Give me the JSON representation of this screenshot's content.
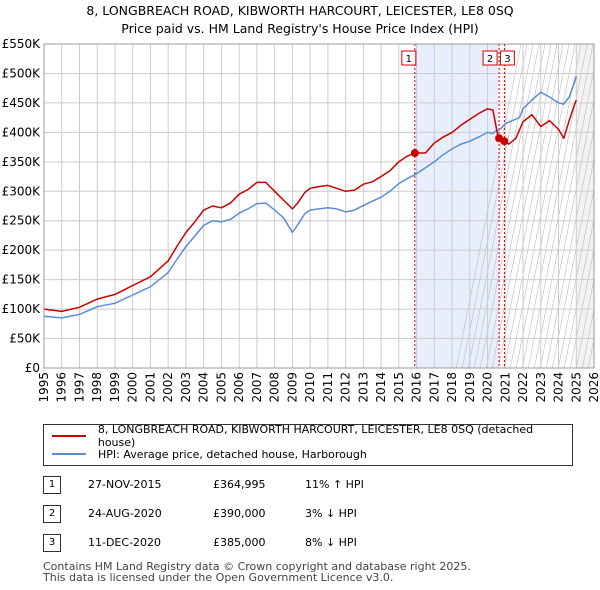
{
  "title": {
    "line1": "8, LONGBREACH ROAD, KIBWORTH HARCOURT, LEICESTER, LE8 0SQ",
    "line2": "Price paid vs. HM Land Registry's House Price Index (HPI)"
  },
  "colors": {
    "property": "#cc0000",
    "hpi": "#5b8dd6",
    "shade": "#e8eefb",
    "grid": "#cccccc",
    "marker_line": "#cc0000",
    "future_hatch": "#bbbbbb"
  },
  "chart_data": {
    "type": "line",
    "xlim": [
      1995,
      2026
    ],
    "ylim": [
      0,
      550000
    ],
    "y_ticks": [
      0,
      50000,
      100000,
      150000,
      200000,
      250000,
      300000,
      350000,
      400000,
      450000,
      500000,
      550000
    ],
    "y_tick_labels": [
      "£0",
      "£50K",
      "£100K",
      "£150K",
      "£200K",
      "£250K",
      "£300K",
      "£350K",
      "£400K",
      "£450K",
      "£500K",
      "£550K"
    ],
    "x_ticks": [
      1995,
      1996,
      1997,
      1998,
      1999,
      2000,
      2001,
      2002,
      2003,
      2004,
      2005,
      2006,
      2007,
      2008,
      2009,
      2010,
      2011,
      2012,
      2013,
      2014,
      2015,
      2016,
      2017,
      2018,
      2019,
      2020,
      2021,
      2022,
      2023,
      2024,
      2025,
      2026
    ],
    "x_tick_labels": [
      "1995",
      "1996",
      "1997",
      "1998",
      "1999",
      "2000",
      "2001",
      "2002",
      "2003",
      "2004",
      "2005",
      "2006",
      "2007",
      "2008",
      "2009",
      "2010",
      "2011",
      "2012",
      "2013",
      "2014",
      "2015",
      "2016",
      "2017",
      "2018",
      "2019",
      "2020",
      "2021",
      "2022",
      "2023",
      "2024",
      "2025",
      "2026"
    ],
    "grid": true,
    "shaded_periods": [
      [
        2015.9,
        2020.62
      ]
    ],
    "future_from": 2025.0,
    "series": [
      {
        "name": "8, LONGBREACH ROAD, KIBWORTH HARCOURT, LEICESTER, LE8 0SQ (detached house)",
        "x": [
          1995.0,
          1996.0,
          1997.0,
          1998.0,
          1999.0,
          2000.0,
          2001.0,
          2002.0,
          2002.5,
          2003.0,
          2003.5,
          2004.0,
          2004.5,
          2005.0,
          2005.5,
          2006.0,
          2006.5,
          2007.0,
          2007.5,
          2008.0,
          2008.5,
          2009.0,
          2009.3,
          2009.7,
          2010.0,
          2010.5,
          2011.0,
          2011.5,
          2012.0,
          2012.5,
          2013.0,
          2013.5,
          2014.0,
          2014.5,
          2015.0,
          2015.5,
          2015.9,
          2016.5,
          2017.0,
          2017.5,
          2018.0,
          2018.5,
          2019.0,
          2019.5,
          2020.0,
          2020.3,
          2020.45,
          2020.6,
          2020.8,
          2020.95,
          2021.2,
          2021.6,
          2022.0,
          2022.5,
          2023.0,
          2023.5,
          2024.0,
          2024.3,
          2024.6,
          2024.9,
          2025.0
        ],
        "y": [
          100000,
          96000,
          103000,
          117000,
          125000,
          140000,
          155000,
          182000,
          207000,
          230000,
          248000,
          268000,
          275000,
          272000,
          280000,
          295000,
          303000,
          315000,
          315000,
          300000,
          285000,
          270000,
          280000,
          298000,
          305000,
          308000,
          310000,
          305000,
          300000,
          302000,
          312000,
          316000,
          325000,
          335000,
          350000,
          360000,
          364995,
          365000,
          382000,
          392000,
          400000,
          412000,
          422000,
          432000,
          440000,
          438000,
          415000,
          390000,
          388000,
          385000,
          380000,
          390000,
          418000,
          430000,
          410000,
          420000,
          405000,
          390000,
          420000,
          447000,
          455000
        ]
      },
      {
        "name": "HPI: Average price, detached house, Harborough",
        "x": [
          1995.0,
          1996.0,
          1997.0,
          1998.0,
          1999.0,
          2000.0,
          2001.0,
          2002.0,
          2002.5,
          2003.0,
          2003.5,
          2004.0,
          2004.5,
          2005.0,
          2005.5,
          2006.0,
          2006.5,
          2007.0,
          2007.5,
          2008.0,
          2008.5,
          2009.0,
          2009.3,
          2009.7,
          2010.0,
          2010.5,
          2011.0,
          2011.5,
          2012.0,
          2012.5,
          2013.0,
          2013.5,
          2014.0,
          2014.5,
          2015.0,
          2015.5,
          2015.9,
          2016.5,
          2017.0,
          2017.5,
          2018.0,
          2018.5,
          2019.0,
          2019.5,
          2020.0,
          2020.3,
          2020.45,
          2020.6,
          2020.8,
          2021.0,
          2021.4,
          2021.8,
          2022.0,
          2022.5,
          2023.0,
          2023.5,
          2024.0,
          2024.3,
          2024.6,
          2024.9,
          2025.0
        ],
        "y": [
          88000,
          85000,
          91000,
          104000,
          110000,
          124000,
          138000,
          162000,
          185000,
          206000,
          224000,
          242000,
          250000,
          248000,
          252000,
          263000,
          270000,
          279000,
          280000,
          268000,
          255000,
          230000,
          243000,
          262000,
          268000,
          270000,
          272000,
          270000,
          265000,
          268000,
          276000,
          283000,
          290000,
          300000,
          313000,
          322000,
          328000,
          340000,
          350000,
          362000,
          372000,
          380000,
          385000,
          392000,
          400000,
          398000,
          402000,
          403000,
          408000,
          415000,
          420000,
          425000,
          440000,
          455000,
          468000,
          460000,
          450000,
          448000,
          460000,
          485000,
          495000
        ]
      }
    ],
    "transactions": [
      {
        "label": "1",
        "x": 2015.9,
        "y": 364995
      },
      {
        "label": "2",
        "x": 2020.65,
        "y": 390000
      },
      {
        "label": "3",
        "x": 2020.95,
        "y": 385000
      }
    ]
  },
  "legend": {
    "property_label": "8, LONGBREACH ROAD, KIBWORTH HARCOURT, LEICESTER, LE8 0SQ (detached house)",
    "hpi_label": "HPI: Average price, detached house, Harborough"
  },
  "transactions_table": [
    {
      "num": "1",
      "date": "27-NOV-2015",
      "price": "£364,995",
      "hpi": "11% ↑ HPI"
    },
    {
      "num": "2",
      "date": "24-AUG-2020",
      "price": "£390,000",
      "hpi": "3% ↓ HPI"
    },
    {
      "num": "3",
      "date": "11-DEC-2020",
      "price": "£385,000",
      "hpi": "8% ↓ HPI"
    }
  ],
  "footer": {
    "line1": "Contains HM Land Registry data © Crown copyright and database right 2025.",
    "line2": "This data is licensed under the Open Government Licence v3.0."
  }
}
